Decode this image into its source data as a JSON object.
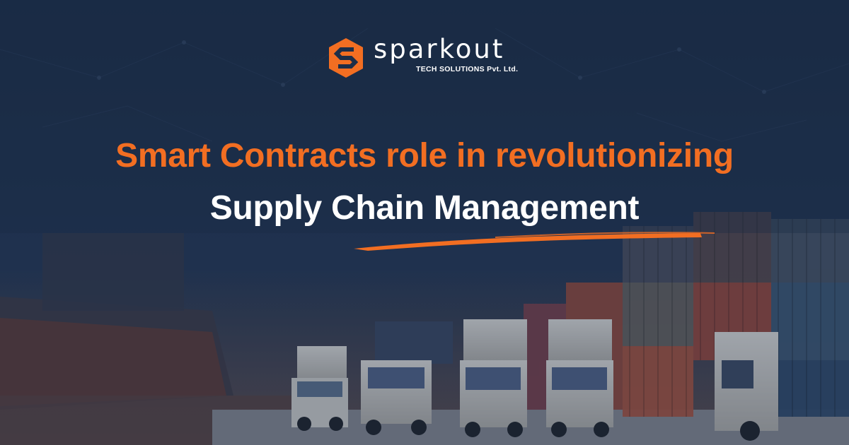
{
  "brand": {
    "name": "sparkout",
    "sub": "TECH SOLUTIONS Pvt. Ltd."
  },
  "headline": {
    "line1": "Smart Contracts role in revolutionizing",
    "line2": "Supply Chain Management"
  },
  "colors": {
    "background": "#1d2e48",
    "accent": "#f26e22",
    "text": "#ffffff"
  },
  "icons": {
    "logo": "sparkout-hexagon-s-icon",
    "underline": "brush-stroke-icon"
  }
}
